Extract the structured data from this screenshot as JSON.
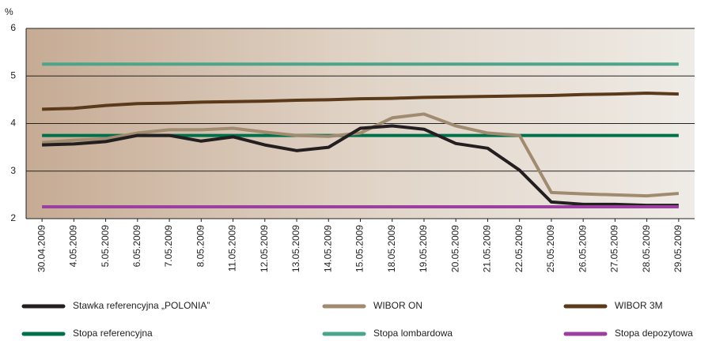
{
  "chart_data": {
    "type": "line",
    "y_label": "%",
    "categories": [
      "30.04.2009",
      "4.05.2009",
      "5.05.2009",
      "6.05.2009",
      "7.05.2009",
      "8.05.2009",
      "11.05.2009",
      "12.05.2009",
      "13.05.2009",
      "14.05.2009",
      "15.05.2009",
      "18.05.2009",
      "19.05.2009",
      "20.05.2009",
      "21.05.2009",
      "22.05.2009",
      "25.05.2009",
      "26.05.2009",
      "27.05.2009",
      "28.05.2009",
      "29.05.2009"
    ],
    "ylim": [
      2,
      6
    ],
    "yticks": [
      2,
      3,
      4,
      5,
      6
    ],
    "grid": true,
    "series": [
      {
        "name": "Stawka referencyjna „POLONIA”",
        "color": "#231f20",
        "values": [
          3.55,
          3.57,
          3.62,
          3.75,
          3.75,
          3.63,
          3.72,
          3.55,
          3.43,
          3.5,
          3.9,
          3.95,
          3.88,
          3.58,
          3.48,
          3.02,
          2.35,
          2.3,
          2.3,
          2.28,
          2.28
        ]
      },
      {
        "name": "WIBOR ON",
        "color": "#a08a70",
        "values": [
          3.6,
          3.65,
          3.68,
          3.8,
          3.87,
          3.87,
          3.9,
          3.82,
          3.75,
          3.73,
          3.8,
          4.12,
          4.2,
          3.95,
          3.8,
          3.75,
          2.55,
          2.52,
          2.5,
          2.48,
          2.53
        ]
      },
      {
        "name": "WIBOR 3M",
        "color": "#5a3a1a",
        "values": [
          4.3,
          4.32,
          4.38,
          4.42,
          4.43,
          4.45,
          4.46,
          4.47,
          4.49,
          4.5,
          4.52,
          4.53,
          4.55,
          4.56,
          4.57,
          4.58,
          4.59,
          4.61,
          4.62,
          4.64,
          4.62
        ]
      },
      {
        "name": "Stopa referencyjna",
        "color": "#00704a",
        "values": [
          3.75,
          3.75,
          3.75,
          3.75,
          3.75,
          3.75,
          3.75,
          3.75,
          3.75,
          3.75,
          3.75,
          3.75,
          3.75,
          3.75,
          3.75,
          3.75,
          3.75,
          3.75,
          3.75,
          3.75,
          3.75
        ]
      },
      {
        "name": "Stopa lombardowa",
        "color": "#4aa58a",
        "values": [
          5.25,
          5.25,
          5.25,
          5.25,
          5.25,
          5.25,
          5.25,
          5.25,
          5.25,
          5.25,
          5.25,
          5.25,
          5.25,
          5.25,
          5.25,
          5.25,
          5.25,
          5.25,
          5.25,
          5.25,
          5.25
        ]
      },
      {
        "name": "Stopa depozytowa",
        "color": "#9b3fa0",
        "values": [
          2.25,
          2.25,
          2.25,
          2.25,
          2.25,
          2.25,
          2.25,
          2.25,
          2.25,
          2.25,
          2.25,
          2.25,
          2.25,
          2.25,
          2.25,
          2.25,
          2.25,
          2.25,
          2.25,
          2.25,
          2.25
        ]
      }
    ]
  }
}
